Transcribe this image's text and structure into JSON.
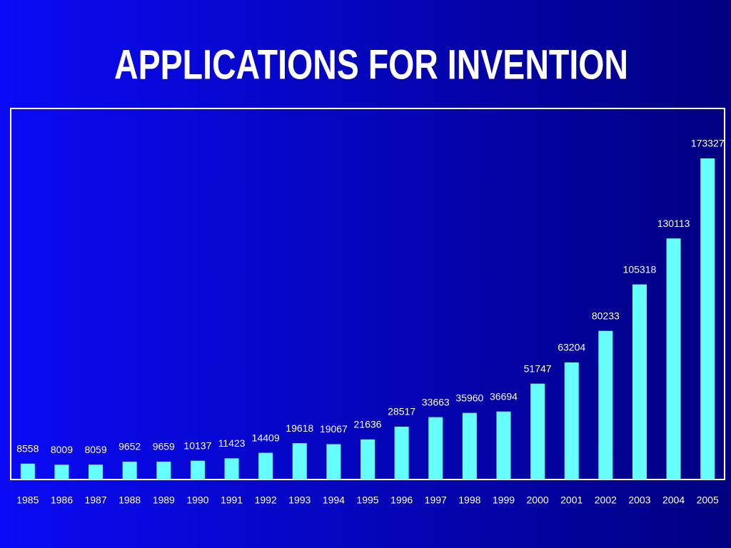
{
  "chart_data": {
    "type": "bar",
    "title": "APPLICATIONS FOR INVENTION",
    "categories": [
      "1985",
      "1986",
      "1987",
      "1988",
      "1989",
      "1990",
      "1991",
      "1992",
      "1993",
      "1994",
      "1995",
      "1996",
      "1997",
      "1998",
      "1999",
      "2000",
      "2001",
      "2002",
      "2003",
      "2004",
      "2005"
    ],
    "values": [
      8558,
      8009,
      8059,
      9652,
      9659,
      10137,
      11423,
      14409,
      19618,
      19067,
      21636,
      28517,
      33663,
      35960,
      36694,
      51747,
      63204,
      80233,
      105318,
      130113,
      173327
    ],
    "color": "#66ffff"
  }
}
